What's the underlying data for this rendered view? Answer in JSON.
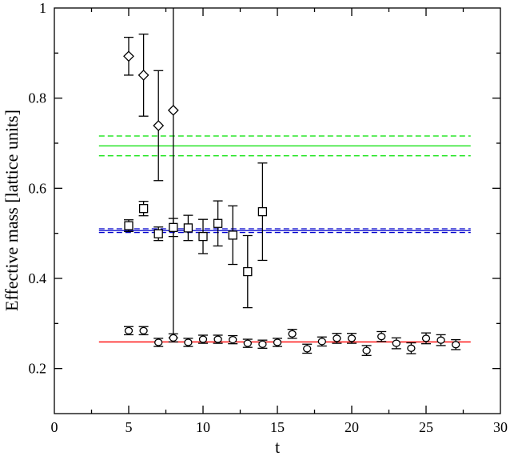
{
  "chart_data": {
    "type": "scatter",
    "title": "",
    "xlabel": "t",
    "ylabel": "Effective mass [lattice units]",
    "xlim": [
      0,
      30
    ],
    "ylim": [
      0.1,
      1.0
    ],
    "x_ticks": [
      0,
      5,
      10,
      15,
      20,
      25,
      30
    ],
    "y_ticks": [
      0.2,
      0.4,
      0.6,
      0.8,
      1.0
    ],
    "x_tick_labels": [
      "0",
      "5",
      "10",
      "15",
      "20",
      "25",
      "30"
    ],
    "y_tick_labels": [
      "0.2",
      "0.4",
      "0.6",
      "0.8",
      "1"
    ],
    "grid": false,
    "series": [
      {
        "marker": "diamond",
        "color": "#000000",
        "x": [
          5,
          6,
          7,
          8
        ],
        "y": [
          0.893,
          0.851,
          0.739,
          0.773
        ],
        "err_lo": [
          0.042,
          0.091,
          0.122,
          0.505
        ],
        "err_hi": [
          0.042,
          0.091,
          0.122,
          0.505
        ]
      },
      {
        "marker": "square",
        "color": "#000000",
        "x": [
          5,
          6,
          7,
          8,
          9,
          10,
          11,
          12,
          13,
          14
        ],
        "y": [
          0.517,
          0.555,
          0.499,
          0.513,
          0.512,
          0.493,
          0.522,
          0.496,
          0.415,
          0.548
        ],
        "err_lo": [
          0.013,
          0.016,
          0.015,
          0.02,
          0.028,
          0.038,
          0.05,
          0.065,
          0.08,
          0.108
        ],
        "err_hi": [
          0.013,
          0.016,
          0.015,
          0.02,
          0.028,
          0.038,
          0.05,
          0.065,
          0.08,
          0.108
        ]
      },
      {
        "marker": "circle",
        "color": "#000000",
        "x": [
          5,
          6,
          7,
          8,
          9,
          10,
          11,
          12,
          13,
          14,
          15,
          16,
          17,
          18,
          19,
          20,
          21,
          22,
          23,
          24,
          25,
          26,
          27
        ],
        "y": [
          0.284,
          0.284,
          0.258,
          0.268,
          0.258,
          0.265,
          0.265,
          0.264,
          0.256,
          0.254,
          0.258,
          0.277,
          0.244,
          0.26,
          0.267,
          0.267,
          0.24,
          0.271,
          0.256,
          0.245,
          0.267,
          0.263,
          0.253
        ],
        "err_lo": [
          0.009,
          0.009,
          0.009,
          0.009,
          0.009,
          0.009,
          0.009,
          0.009,
          0.009,
          0.009,
          0.009,
          0.01,
          0.01,
          0.01,
          0.011,
          0.011,
          0.011,
          0.011,
          0.012,
          0.012,
          0.012,
          0.012,
          0.011
        ],
        "err_hi": [
          0.009,
          0.009,
          0.009,
          0.009,
          0.009,
          0.009,
          0.009,
          0.009,
          0.009,
          0.009,
          0.009,
          0.01,
          0.01,
          0.01,
          0.011,
          0.011,
          0.011,
          0.011,
          0.012,
          0.012,
          0.012,
          0.012,
          0.011
        ]
      }
    ],
    "fit_lines": [
      {
        "color": "#00e000",
        "x_range": [
          3,
          28
        ],
        "center": 0.694,
        "band": [
          0.672,
          0.716
        ],
        "band_dashed": true
      },
      {
        "color": "#0000cc",
        "x_range": [
          3,
          28
        ],
        "center": 0.506,
        "band": [
          0.502,
          0.51
        ],
        "band_dashed": true
      },
      {
        "color": "#ff0000",
        "x_range": [
          3,
          28
        ],
        "center": 0.259,
        "band": null,
        "band_dashed": false
      }
    ]
  }
}
